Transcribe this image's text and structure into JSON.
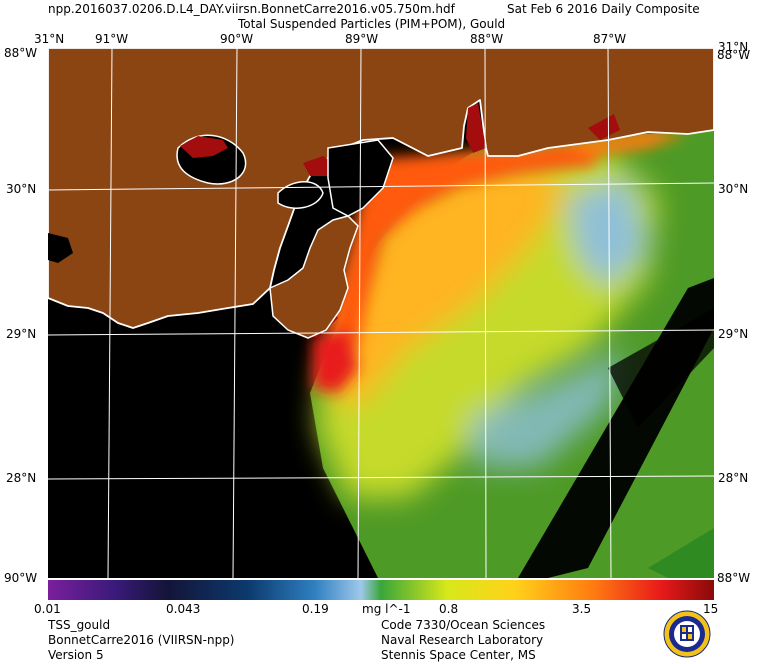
{
  "header": {
    "filename": "npp.2016037.0206.D.L4_DAY.viirsn.BonnetCarre2016.v05.750m.hdf",
    "date": "Sat Feb  6 2016 Daily Composite",
    "product": "Total Suspended Particles (PIM+POM), Gould"
  },
  "map": {
    "top_labels": [
      "31°N",
      "91°W",
      "90°W",
      "89°W",
      "88°W",
      "87°W",
      "31°N"
    ],
    "corner_labels": {
      "top_left": "88°W",
      "top_right": "88°W",
      "bottom_left": "90°W",
      "bottom_right": "88°W"
    },
    "left_lat_labels": [
      "30°N",
      "29°N",
      "28°N"
    ],
    "right_lat_labels": [
      "30°N",
      "29°N",
      "28°N"
    ],
    "colors": {
      "land": "#8b4513",
      "nodata": "#000000",
      "coast": "#ffffff",
      "grid": "#ffffff"
    }
  },
  "colorbar": {
    "ticks": [
      "0.01",
      "0.043",
      "0.19",
      "0.8",
      "3.5",
      "15"
    ],
    "units": "mg l^-1",
    "colors": [
      "#7a1f9c",
      "#3a1a7a",
      "#141438",
      "#0c3a6e",
      "#2f7fc0",
      "#9ec8ea",
      "#3aa63a",
      "#d8e81a",
      "#ffd21a",
      "#ff7a10",
      "#e81a1a",
      "#8a0a0a"
    ]
  },
  "footer": {
    "left": [
      "TSS_gould",
      "BonnetCarre2016 (VIIRSN-npp)",
      "Version 5"
    ],
    "right": [
      "Code 7330/Ocean Sciences",
      "Naval Research Laboratory",
      "Stennis Space Center, MS"
    ]
  },
  "logo": {
    "name": "NRL seal"
  }
}
